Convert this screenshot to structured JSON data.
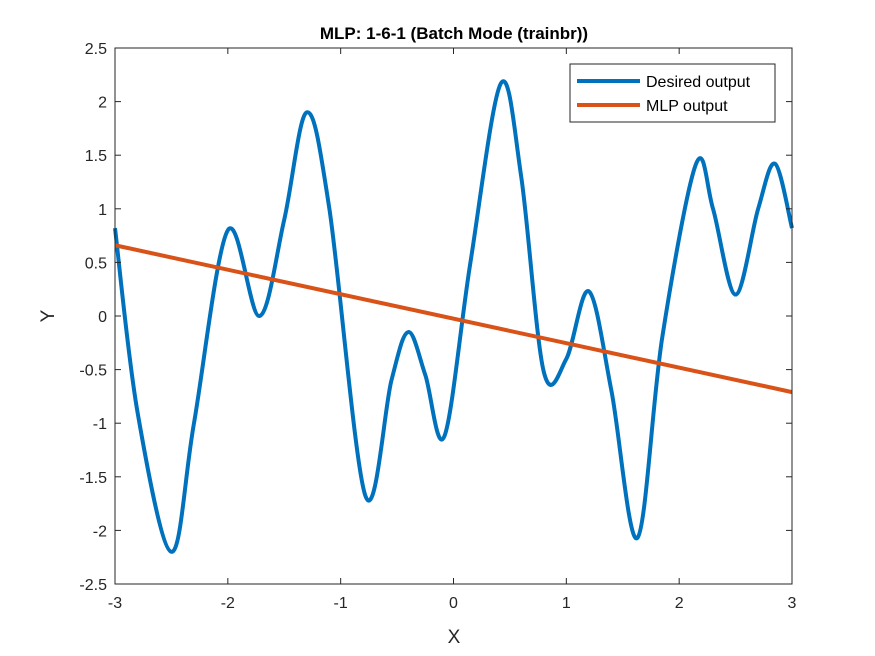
{
  "chart_data": {
    "type": "line",
    "title": "MLP: 1-6-1 (Batch Mode (trainbr))",
    "xlabel": "X",
    "ylabel": "Y",
    "xlim": [
      -3,
      3
    ],
    "ylim": [
      -2.5,
      2.5
    ],
    "xticks": [
      "-3",
      "-2",
      "-1",
      "0",
      "1",
      "2",
      "3"
    ],
    "yticks": [
      "-2.5",
      "-2",
      "-1.5",
      "-1",
      "-0.5",
      "0",
      "0.5",
      "1",
      "1.5",
      "2",
      "2.5"
    ],
    "grid": false,
    "legend_position": "top-right",
    "series": [
      {
        "name": "Desired output",
        "color": "#0072BD",
        "x": [
          -3,
          -2.8,
          -2.5,
          -2.3,
          -2.0,
          -1.72,
          -1.5,
          -1.3,
          -1.1,
          -0.78,
          -0.55,
          -0.4,
          -0.25,
          -0.08,
          0.15,
          0.42,
          0.6,
          0.8,
          1.0,
          1.2,
          1.4,
          1.63,
          1.85,
          2.15,
          2.3,
          2.5,
          2.7,
          2.85,
          3.0
        ],
        "y": [
          0.82,
          -0.9,
          -2.2,
          -1.0,
          0.8,
          0.0,
          0.9,
          1.9,
          1.0,
          -1.68,
          -0.6,
          -0.15,
          -0.55,
          -1.12,
          0.5,
          2.17,
          1.3,
          -0.52,
          -0.4,
          0.23,
          -0.7,
          -2.07,
          -0.2,
          1.42,
          1.0,
          0.2,
          1.0,
          1.42,
          0.82
        ]
      },
      {
        "name": "MLP output",
        "color": "#D95319",
        "x": [
          -3,
          3
        ],
        "y": [
          0.66,
          -0.71
        ]
      }
    ]
  }
}
